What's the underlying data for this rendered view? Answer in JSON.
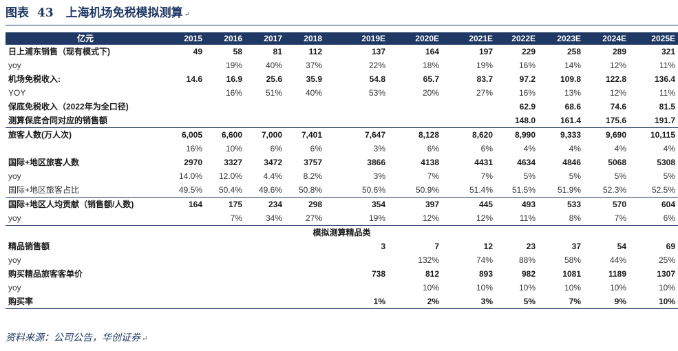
{
  "title": {
    "prefix": "图表",
    "number": "43",
    "text": "上海机场免税模拟测算",
    "mark": "↵"
  },
  "header": {
    "label": "亿元",
    "years": [
      "2015",
      "2016",
      "2017",
      "2018",
      "2019E",
      "2020E",
      "2021E",
      "2022E",
      "2023E",
      "2024E",
      "2025E"
    ]
  },
  "rows": [
    {
      "label": "日上浦东销售（现有模式下)",
      "style": "bold",
      "values": [
        "49",
        "58",
        "81",
        "112",
        "137",
        "164",
        "197",
        "229",
        "258",
        "289",
        "321"
      ]
    },
    {
      "label": "yoy",
      "style": "light",
      "values": [
        "",
        "19%",
        "40%",
        "37%",
        "22%",
        "18%",
        "19%",
        "16%",
        "14%",
        "12%",
        "11%"
      ]
    },
    {
      "label": "机场免税收入:",
      "style": "bold",
      "values": [
        "14.6",
        "16.9",
        "25.6",
        "35.9",
        "54.8",
        "65.7",
        "83.7",
        "97.2",
        "109.8",
        "122.8",
        "136.4"
      ]
    },
    {
      "label": "YOY",
      "style": "light",
      "values": [
        "",
        "16%",
        "51%",
        "40%",
        "53%",
        "20%",
        "27%",
        "16%",
        "13%",
        "12%",
        "11%"
      ]
    },
    {
      "label": "保底免税收入（2022年为全口径)",
      "style": "bold",
      "values": [
        "",
        "",
        "",
        "",
        "",
        "",
        "",
        "62.9",
        "68.6",
        "74.6",
        "81.5"
      ]
    },
    {
      "label": "测算保底合同对应的销售额",
      "style": "bold sep",
      "values": [
        "",
        "",
        "",
        "",
        "",
        "",
        "",
        "148.0",
        "161.4",
        "175.6",
        "191.7"
      ]
    },
    {
      "label": "旅客人数(万人次)",
      "style": "bold",
      "values": [
        "6,005",
        "6,600",
        "7,000",
        "7,401",
        "7,647",
        "8,128",
        "8,620",
        "8,990",
        "9,333",
        "9,690",
        "10,115"
      ]
    },
    {
      "label": "",
      "style": "light",
      "values": [
        "16%",
        "10%",
        "6%",
        "6%",
        "3%",
        "6%",
        "6%",
        "4%",
        "4%",
        "4%",
        "4%"
      ]
    },
    {
      "label": "国际+地区旅客人数",
      "style": "bold",
      "values": [
        "2970",
        "3327",
        "3472",
        "3757",
        "3866",
        "4138",
        "4431",
        "4634",
        "4846",
        "5068",
        "5308"
      ]
    },
    {
      "label": "yoy",
      "style": "light",
      "values": [
        "14.0%",
        "12.0%",
        "4.4%",
        "8.2%",
        "3%",
        "7%",
        "7%",
        "5%",
        "5%",
        "5%",
        "5%"
      ]
    },
    {
      "label": "国际+地区旅客占比",
      "style": "light sep",
      "values": [
        "49.5%",
        "50.4%",
        "49.6%",
        "50.8%",
        "50.6%",
        "50.9%",
        "51.4%",
        "51.5%",
        "51.9%",
        "52.3%",
        "52.5%"
      ]
    },
    {
      "label": "国际+地区人均贡献（销售额/人数)",
      "style": "bold",
      "values": [
        "164",
        "175",
        "234",
        "298",
        "354",
        "397",
        "445",
        "493",
        "533",
        "570",
        "604"
      ]
    },
    {
      "label": "yoy",
      "style": "light sep",
      "values": [
        "",
        "7%",
        "34%",
        "27%",
        "19%",
        "12%",
        "12%",
        "11%",
        "8%",
        "7%",
        "6%"
      ]
    }
  ],
  "section_title": "模拟测算精品类",
  "rows2": [
    {
      "label": "精品销售额",
      "style": "bold",
      "values": [
        "",
        "",
        "",
        "",
        "3",
        "7",
        "12",
        "23",
        "37",
        "54",
        "69"
      ]
    },
    {
      "label": "yoy",
      "style": "light",
      "values": [
        "",
        "",
        "",
        "",
        "",
        "132%",
        "74%",
        "88%",
        "58%",
        "44%",
        "25%"
      ]
    },
    {
      "label": "购买精品旅客客单价",
      "style": "bold",
      "values": [
        "",
        "",
        "",
        "",
        "738",
        "812",
        "893",
        "982",
        "1081",
        "1189",
        "1307"
      ]
    },
    {
      "label": "yoy",
      "style": "light",
      "values": [
        "",
        "",
        "",
        "",
        "",
        "10%",
        "10%",
        "10%",
        "10%",
        "10%",
        "10%"
      ]
    },
    {
      "label": "购买率",
      "style": "bold last",
      "values": [
        "",
        "",
        "",
        "",
        "1%",
        "2%",
        "3%",
        "5%",
        "7%",
        "9%",
        "10%"
      ]
    }
  ],
  "source": {
    "text": "资料来源：公司公告，华创证券",
    "mark": "↵"
  },
  "colors": {
    "navy": "#1f3864",
    "header_text": "#ffffff"
  }
}
